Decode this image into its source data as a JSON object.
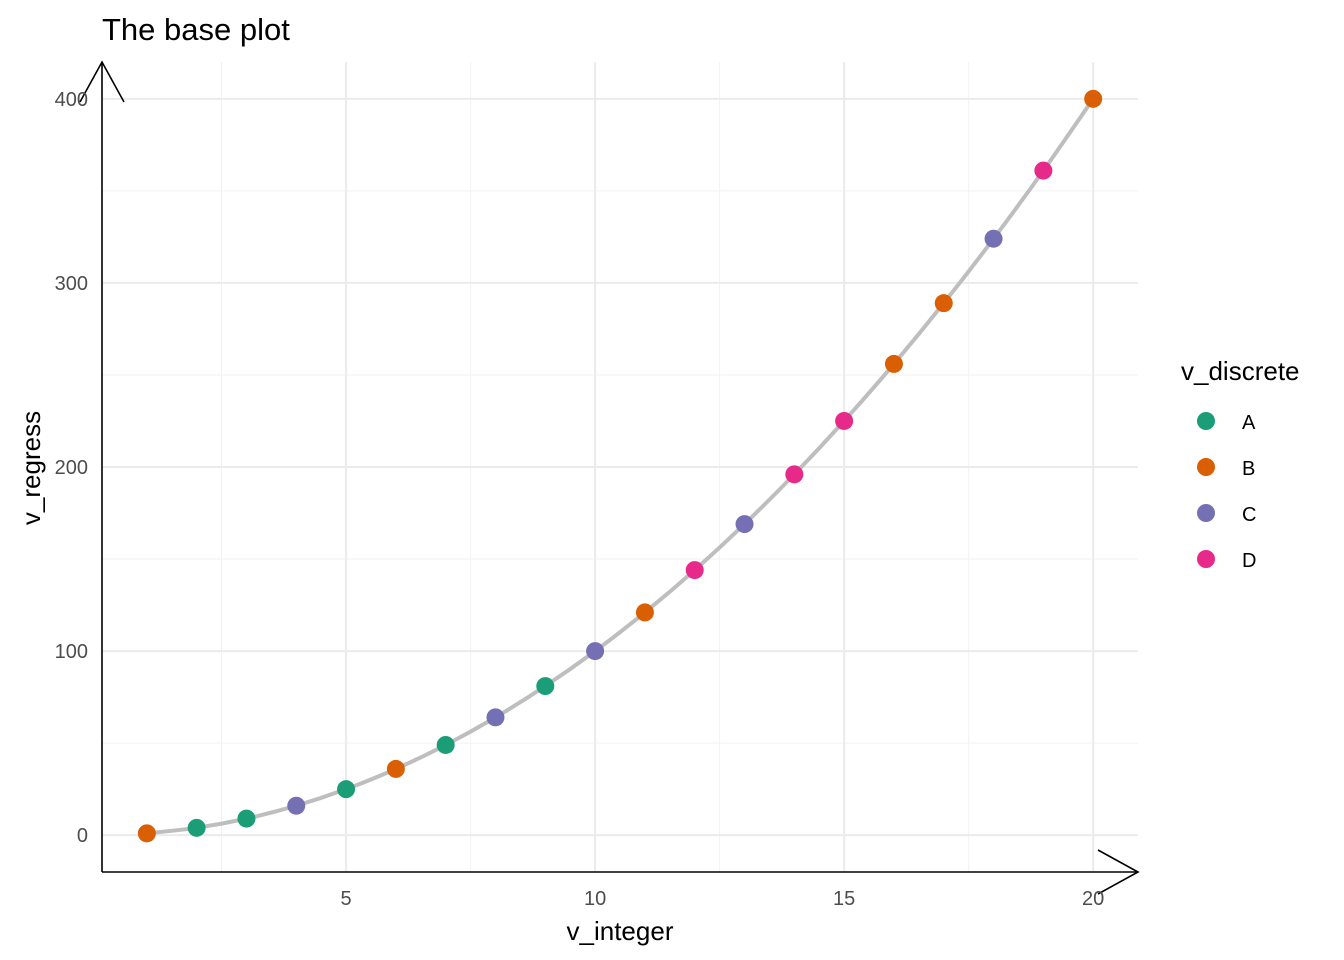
{
  "chart_data": {
    "type": "scatter",
    "title": "The base plot",
    "xlabel": "v_integer",
    "ylabel": "v_regress",
    "xlim": [
      0.1,
      20.9
    ],
    "ylim": [
      -20,
      420
    ],
    "x_ticks": [
      5,
      10,
      15,
      20
    ],
    "y_ticks": [
      0,
      100,
      200,
      300,
      400
    ],
    "x_minor": [
      2.5,
      7.5,
      12.5,
      17.5
    ],
    "y_minor": [
      50,
      150,
      250,
      350
    ],
    "grid": true,
    "axis_arrows": true,
    "smooth_line": {
      "color": "#bebebe"
    },
    "legend": {
      "title": "v_discrete",
      "position": "right",
      "entries": [
        {
          "label": "A",
          "color": "#1b9e77"
        },
        {
          "label": "B",
          "color": "#d95f02"
        },
        {
          "label": "C",
          "color": "#7570b3"
        },
        {
          "label": "D",
          "color": "#e7298a"
        }
      ]
    },
    "points": [
      {
        "x": 1,
        "y": 1,
        "group": "B"
      },
      {
        "x": 2,
        "y": 4,
        "group": "A"
      },
      {
        "x": 3,
        "y": 9,
        "group": "A"
      },
      {
        "x": 4,
        "y": 16,
        "group": "C"
      },
      {
        "x": 5,
        "y": 25,
        "group": "A"
      },
      {
        "x": 6,
        "y": 36,
        "group": "B"
      },
      {
        "x": 7,
        "y": 49,
        "group": "A"
      },
      {
        "x": 8,
        "y": 64,
        "group": "C"
      },
      {
        "x": 9,
        "y": 81,
        "group": "A"
      },
      {
        "x": 10,
        "y": 100,
        "group": "C"
      },
      {
        "x": 11,
        "y": 121,
        "group": "B"
      },
      {
        "x": 12,
        "y": 144,
        "group": "D"
      },
      {
        "x": 13,
        "y": 169,
        "group": "C"
      },
      {
        "x": 14,
        "y": 196,
        "group": "D"
      },
      {
        "x": 15,
        "y": 225,
        "group": "D"
      },
      {
        "x": 16,
        "y": 256,
        "group": "B"
      },
      {
        "x": 17,
        "y": 289,
        "group": "B"
      },
      {
        "x": 18,
        "y": 324,
        "group": "C"
      },
      {
        "x": 19,
        "y": 361,
        "group": "D"
      },
      {
        "x": 20,
        "y": 400,
        "group": "B"
      }
    ]
  }
}
